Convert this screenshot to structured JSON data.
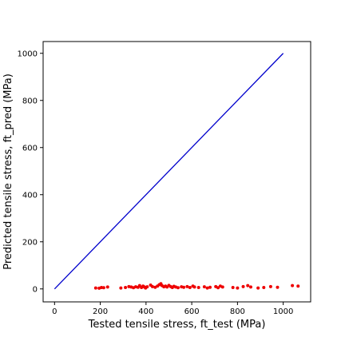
{
  "chart_data": {
    "type": "scatter",
    "xlabel": "Tested tensile stress, ft_test (MPa)",
    "ylabel": "Predicted tensile stress, ft_pred (MPa)",
    "xlim": [
      -50,
      1120
    ],
    "ylim": [
      -55,
      1050
    ],
    "xticks": [
      0,
      200,
      400,
      600,
      800,
      1000
    ],
    "yticks": [
      0,
      200,
      400,
      600,
      800,
      1000
    ],
    "grid": false,
    "series": [
      {
        "kind": "line",
        "color": "#0000cc",
        "x": [
          0,
          1000
        ],
        "y": [
          0,
          1000
        ]
      },
      {
        "kind": "scatter",
        "color": "#ee0000",
        "x": [
          180,
          195,
          205,
          215,
          232,
          290,
          310,
          325,
          335,
          345,
          355,
          365,
          372,
          380,
          387,
          393,
          398,
          405,
          420,
          428,
          440,
          450,
          458,
          465,
          470,
          478,
          485,
          492,
          500,
          508,
          515,
          522,
          530,
          540,
          555,
          565,
          580,
          592,
          605,
          612,
          630,
          655,
          668,
          680,
          705,
          715,
          725,
          735,
          780,
          800,
          825,
          845,
          858,
          890,
          915,
          945,
          975,
          1040,
          1065
        ],
        "y": [
          4,
          3,
          6,
          5,
          8,
          4,
          6,
          10,
          8,
          5,
          9,
          7,
          14,
          6,
          12,
          8,
          4,
          9,
          16,
          10,
          7,
          12,
          18,
          22,
          14,
          9,
          12,
          8,
          15,
          10,
          6,
          11,
          8,
          5,
          9,
          7,
          10,
          6,
          12,
          8,
          6,
          9,
          4,
          7,
          10,
          5,
          12,
          8,
          6,
          4,
          10,
          14,
          8,
          4,
          6,
          10,
          7,
          14,
          12
        ]
      }
    ]
  }
}
